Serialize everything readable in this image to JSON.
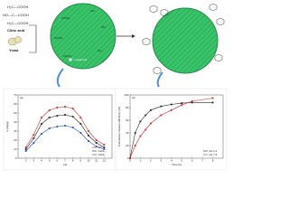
{
  "figure": {
    "citric_acid": [
      "H₂C—COOH",
      "HO—C—COOH",
      "H₂C—COOH"
    ],
    "citric_label": "Citric acid",
    "yeast_label": "Yeast",
    "cell_label": "= yeast cell",
    "surface_groups": [
      "COOH",
      "OH",
      "COOH",
      "OH",
      "COOH",
      "OH"
    ]
  },
  "chart_data": [
    {
      "type": "line",
      "panel": "(a)",
      "xlabel": "pH",
      "ylabel": "q (mg/g)",
      "xlim": [
        1,
        13
      ],
      "xticks": [
        2,
        3,
        4,
        5,
        6,
        7,
        8,
        9,
        10,
        11,
        12
      ],
      "ylim": [
        0,
        70
      ],
      "yticks": [
        0,
        10,
        20,
        30,
        40,
        50,
        60,
        70
      ],
      "legend": "bottom-right",
      "x": [
        2,
        3,
        4,
        5,
        6,
        7,
        8,
        9,
        10,
        11,
        12
      ],
      "series": [
        {
          "name": "CD",
          "color": "#d62728",
          "values": [
            12,
            26,
            45,
            53,
            56,
            57,
            55,
            45,
            30,
            20,
            15
          ]
        },
        {
          "name": "CaCl₂",
          "color": "#222222",
          "values": [
            10,
            22,
            38,
            45,
            47,
            48,
            46,
            38,
            25,
            17,
            12
          ]
        },
        {
          "name": "CdCl₂",
          "color": "#1f4fc4",
          "values": [
            8,
            17,
            27,
            33,
            35,
            36,
            34,
            28,
            19,
            13,
            10
          ]
        }
      ]
    },
    {
      "type": "line",
      "panel": "(b)",
      "xlabel": "Time (h)",
      "ylabel": "Cumulative release efficiency (%)",
      "xlim": [
        0,
        9
      ],
      "xticks": [
        0,
        1,
        2,
        3,
        4,
        5,
        6,
        7,
        8
      ],
      "ylim": [
        0,
        100
      ],
      "yticks": [
        0,
        20,
        40,
        60,
        80,
        100
      ],
      "legend": "bottom-right",
      "x": [
        0,
        0.5,
        1,
        1.5,
        2,
        3,
        4,
        5,
        6,
        8
      ],
      "series": [
        {
          "name": "pH 1.2",
          "color": "#222222",
          "values": [
            0,
            40,
            58,
            68,
            76,
            82,
            85,
            87,
            88,
            88
          ]
        },
        {
          "name": "pH 7.4",
          "color": "#d62728",
          "values": [
            0,
            20,
            35,
            45,
            55,
            68,
            76,
            84,
            90,
            95
          ]
        }
      ]
    }
  ]
}
